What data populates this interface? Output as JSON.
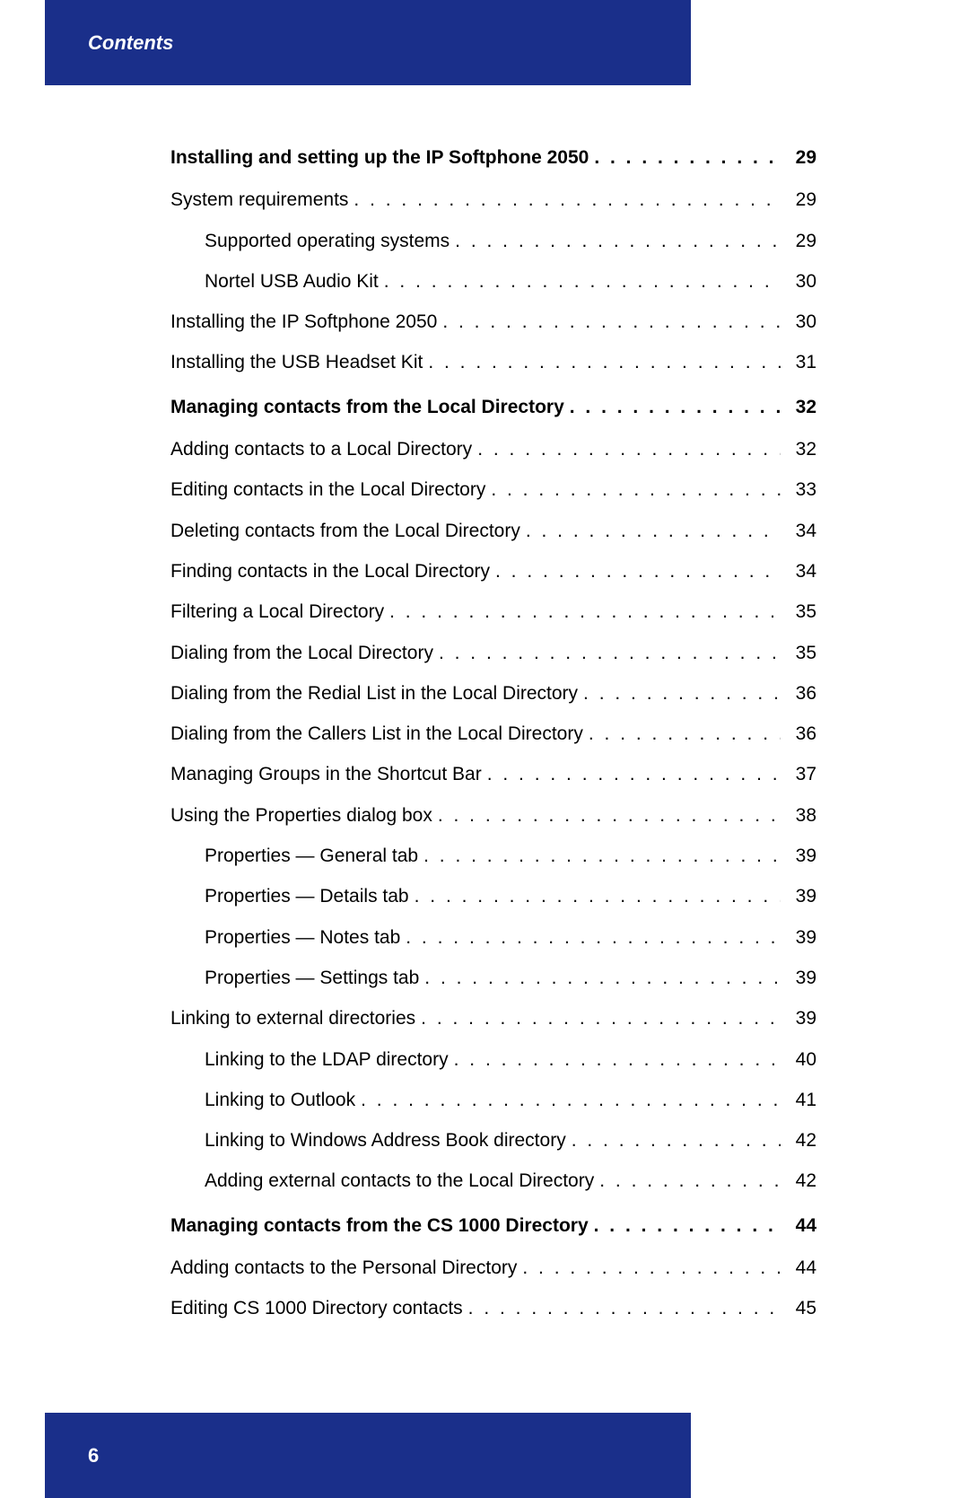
{
  "header": {
    "title": "Contents"
  },
  "footer": {
    "page_number": "6"
  },
  "palette": {
    "bar_bg": "#1a2f8a",
    "bar_fg": "#ffffff",
    "text": "#000000"
  },
  "toc": [
    {
      "title": "Installing and setting up the IP Softphone 2050",
      "page": "29",
      "bold": true,
      "indent": 0
    },
    {
      "title": "System requirements",
      "page": "29",
      "bold": false,
      "indent": 0
    },
    {
      "title": "Supported operating systems",
      "page": "29",
      "bold": false,
      "indent": 1
    },
    {
      "title": "Nortel USB Audio Kit",
      "page": "30",
      "bold": false,
      "indent": 1
    },
    {
      "title": "Installing the IP Softphone 2050",
      "page": "30",
      "bold": false,
      "indent": 0
    },
    {
      "title": "Installing the USB Headset Kit",
      "page": "31",
      "bold": false,
      "indent": 0
    },
    {
      "title": "Managing contacts from the Local Directory",
      "page": "32",
      "bold": true,
      "indent": 0
    },
    {
      "title": "Adding contacts to a Local Directory",
      "page": "32",
      "bold": false,
      "indent": 0
    },
    {
      "title": "Editing contacts in the Local Directory",
      "page": "33",
      "bold": false,
      "indent": 0
    },
    {
      "title": "Deleting contacts from the Local Directory",
      "page": "34",
      "bold": false,
      "indent": 0
    },
    {
      "title": "Finding contacts in the Local Directory",
      "page": "34",
      "bold": false,
      "indent": 0
    },
    {
      "title": "Filtering a Local Directory",
      "page": "35",
      "bold": false,
      "indent": 0
    },
    {
      "title": "Dialing from the Local Directory",
      "page": "35",
      "bold": false,
      "indent": 0
    },
    {
      "title": "Dialing from the Redial List in the Local Directory",
      "page": "36",
      "bold": false,
      "indent": 0
    },
    {
      "title": "Dialing from the Callers List in the Local Directory",
      "page": "36",
      "bold": false,
      "indent": 0
    },
    {
      "title": "Managing Groups in the Shortcut Bar",
      "page": "37",
      "bold": false,
      "indent": 0
    },
    {
      "title": "Using the Properties dialog box",
      "page": "38",
      "bold": false,
      "indent": 0
    },
    {
      "title": "Properties — General tab",
      "page": "39",
      "bold": false,
      "indent": 1
    },
    {
      "title": "Properties — Details tab",
      "page": "39",
      "bold": false,
      "indent": 1
    },
    {
      "title": "Properties — Notes tab",
      "page": "39",
      "bold": false,
      "indent": 1
    },
    {
      "title": "Properties — Settings tab",
      "page": "39",
      "bold": false,
      "indent": 1
    },
    {
      "title": "Linking to external directories",
      "page": "39",
      "bold": false,
      "indent": 0
    },
    {
      "title": "Linking to the LDAP directory",
      "page": "40",
      "bold": false,
      "indent": 1
    },
    {
      "title": "Linking to Outlook",
      "page": "41",
      "bold": false,
      "indent": 1
    },
    {
      "title": "Linking to Windows Address Book directory",
      "page": "42",
      "bold": false,
      "indent": 1
    },
    {
      "title": "Adding external contacts to the Local Directory",
      "page": "42",
      "bold": false,
      "indent": 1
    },
    {
      "title": "Managing contacts from the CS 1000 Directory",
      "page": "44",
      "bold": true,
      "indent": 0
    },
    {
      "title": "Adding contacts to the Personal Directory",
      "page": "44",
      "bold": false,
      "indent": 0
    },
    {
      "title": "Editing CS 1000 Directory contacts",
      "page": "45",
      "bold": false,
      "indent": 0
    }
  ]
}
